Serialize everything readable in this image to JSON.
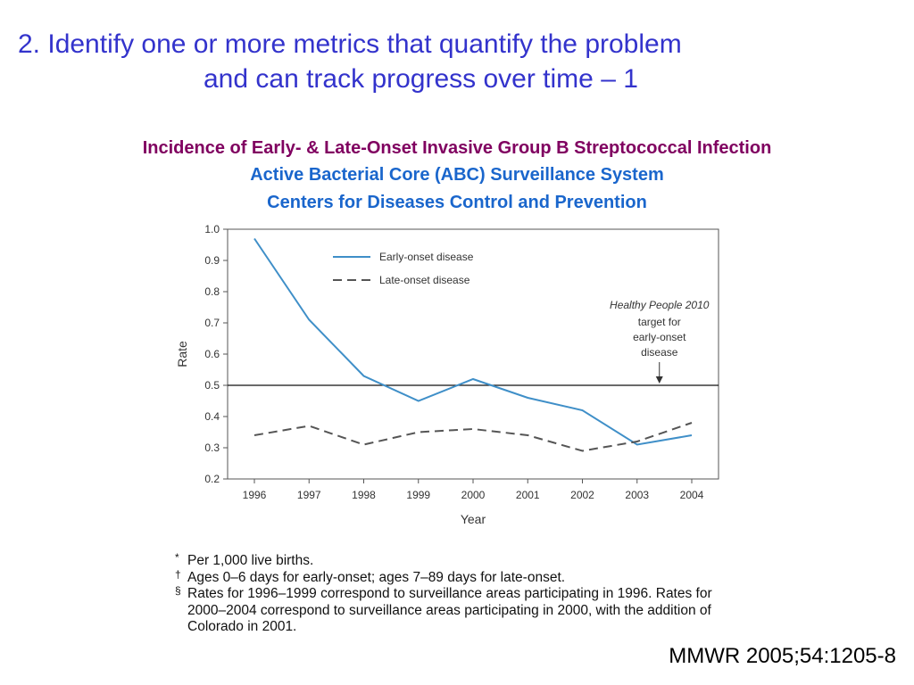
{
  "slide": {
    "title_line1": "2. Identify one or more metrics that quantify the problem",
    "title_line2": "and can track progress over time – 1",
    "subtitle1": "Incidence of Early- & Late-Onset Invasive Group B Streptococcal Infection",
    "subtitle2": "Active Bacterial Core (ABC) Surveillance System",
    "subtitle3": "Centers for Diseases Control and Prevention",
    "citation": "MMWR 2005;54:1205-8"
  },
  "footnotes": [
    {
      "mark": "*",
      "text": "Per 1,000 live births."
    },
    {
      "mark": "†",
      "text": "Ages 0–6 days for early-onset; ages 7–89 days for late-onset."
    },
    {
      "mark": "§",
      "text": "Rates for 1996–1999 correspond to surveillance areas participating in 1996. Rates for 2000–2004 correspond to surveillance areas participating in 2000, with the addition of Colorado in 2001."
    }
  ],
  "chart_data": {
    "type": "line",
    "xlabel": "Year",
    "ylabel": "Rate",
    "categories": [
      "1996",
      "1997",
      "1998",
      "1999",
      "2000",
      "2001",
      "2002",
      "2003",
      "2004"
    ],
    "ylim": [
      0.2,
      1.0
    ],
    "yticks": [
      "0.2",
      "0.3",
      "0.4",
      "0.5",
      "0.6",
      "0.7",
      "0.8",
      "0.9",
      "1.0"
    ],
    "grid": false,
    "legend_position": "top-center",
    "series": [
      {
        "name": "Early-onset disease",
        "style": "solid",
        "color": "#3f8fc8",
        "values": [
          0.97,
          0.71,
          0.53,
          0.45,
          0.52,
          0.46,
          0.42,
          0.31,
          0.34
        ]
      },
      {
        "name": "Late-onset disease",
        "style": "dashed",
        "color": "#555555",
        "values": [
          0.34,
          0.37,
          0.31,
          0.35,
          0.36,
          0.34,
          0.29,
          0.32,
          0.38
        ]
      }
    ],
    "reference_line": {
      "value": 0.5,
      "color": "#111111"
    },
    "annotation": {
      "italic_line": "Healthy People 2010",
      "lines": [
        "target for",
        "early-onset",
        "disease"
      ],
      "x": "2003"
    }
  }
}
